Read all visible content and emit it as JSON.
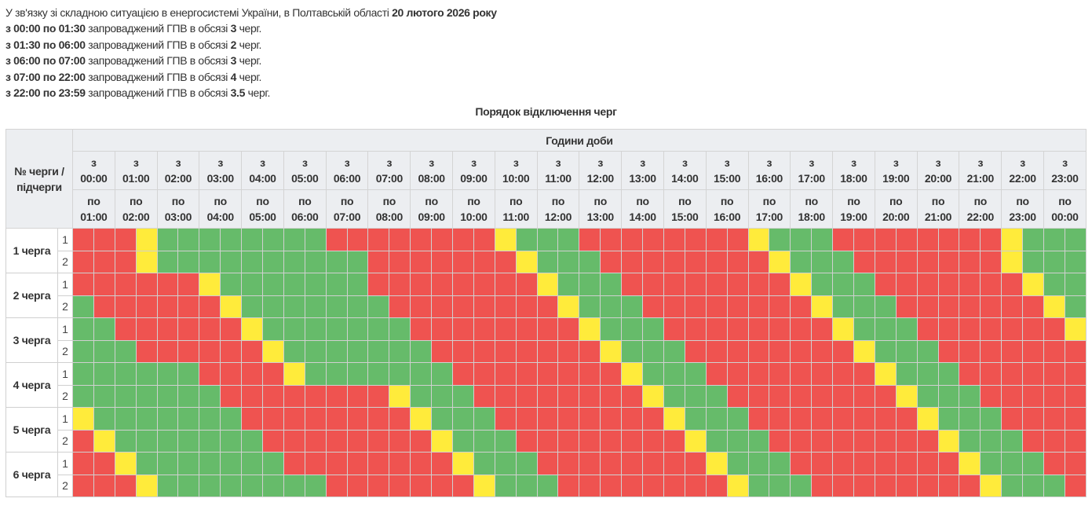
{
  "intro": {
    "text": "У зв'язку зі складною ситуацією в енергосистемі України, в Полтавській області",
    "date": "20 лютого 2026 року"
  },
  "periods": [
    {
      "range": "з 00:00 по 01:30",
      "text": "запроваджений ГПВ в обсязі",
      "amount": "3",
      "unit": "черг."
    },
    {
      "range": "з 01:30 по 06:00",
      "text": "запроваджений ГПВ в обсязі",
      "amount": "2",
      "unit": "черг."
    },
    {
      "range": "з 06:00 по 07:00",
      "text": "запроваджений ГПВ в обсязі",
      "amount": "3",
      "unit": "черг."
    },
    {
      "range": "з 07:00 по 22:00",
      "text": "запроваджений ГПВ в обсязі",
      "amount": "4",
      "unit": "черг."
    },
    {
      "range": "з 22:00 по 23:59",
      "text": "запроваджений ГПВ в обсязі",
      "amount": "3.5",
      "unit": "черг."
    }
  ],
  "table": {
    "title": "Порядок відключення черг",
    "corner_header": "№ черги / підчерги",
    "hours_header": "Години доби",
    "from_label": "з",
    "to_label": "по",
    "from_times": [
      "00:00",
      "01:00",
      "02:00",
      "03:00",
      "04:00",
      "05:00",
      "06:00",
      "07:00",
      "08:00",
      "09:00",
      "10:00",
      "11:00",
      "12:00",
      "13:00",
      "14:00",
      "15:00",
      "16:00",
      "17:00",
      "18:00",
      "19:00",
      "20:00",
      "21:00",
      "22:00",
      "23:00"
    ],
    "to_times": [
      "01:00",
      "02:00",
      "03:00",
      "04:00",
      "05:00",
      "06:00",
      "07:00",
      "08:00",
      "09:00",
      "10:00",
      "11:00",
      "12:00",
      "13:00",
      "14:00",
      "15:00",
      "16:00",
      "17:00",
      "18:00",
      "19:00",
      "20:00",
      "21:00",
      "22:00",
      "23:00",
      "00:00"
    ],
    "legend_colors": {
      "R": "#ef5350",
      "G": "#66bb6a",
      "Y": "#ffeb3b"
    },
    "queues": [
      {
        "label": "1 черга",
        "subs": [
          {
            "num": "1",
            "slots": "RRRYGGGGGGGGRRRRRRRRYGGGRRRRRRRRYGGGRRRRRRRRYGGG"
          },
          {
            "num": "2",
            "slots": "RRRYGGGGGGGGGGRRRRRRRYGGGRRRRRRRRYGGGRRRRRRRYGGG"
          }
        ]
      },
      {
        "label": "2 черга",
        "subs": [
          {
            "num": "1",
            "slots": "RRRRRRYGGGGGGGRRRRRRRRYGGGRRRRRRRRYGGGRRRRRRRYGG"
          },
          {
            "num": "2",
            "slots": "GRRRRRRYGGGGGGGRRRRRRRRYGGGRRRRRRRRYGGGRRRRRRRYG"
          }
        ]
      },
      {
        "label": "3 черга",
        "subs": [
          {
            "num": "1",
            "slots": "GGRRRRRRYGGGGGGGRRRRRRRRYGGGRRRRRRRRYGGGRRRRRRRY"
          },
          {
            "num": "2",
            "slots": "GGGRRRRRRYGGGGGGGRRRRRRRRYGGGRRRRRRRRYGGGRRRRRRR"
          }
        ]
      },
      {
        "label": "4 черга",
        "subs": [
          {
            "num": "1",
            "slots": "GGGGGGRRRRYGGGGGGGRRRRRRRRYGGGRRRRRRRRYGGGRRRRRR"
          },
          {
            "num": "2",
            "slots": "GGGGGGGRRRRRRRRYGGGRRRRRRRRYGGGRRRRRRRRYGGGRRRRR"
          }
        ]
      },
      {
        "label": "5 черга",
        "subs": [
          {
            "num": "1",
            "slots": "YGGGGGGGRRRRRRRRYGGGRRRRRRRRYGGGRRRRRRRRYGGGRRRR"
          },
          {
            "num": "2",
            "slots": "RYGGGGGGGRRRRRRRRYGGGRRRRRRRRYGGGRRRRRRRRYGGGRRR"
          }
        ]
      },
      {
        "label": "6 черга",
        "subs": [
          {
            "num": "1",
            "slots": "RRYGGGGGGGRRRRRRRRYGGGRRRRRRRRYGGGRRRRRRRRYGGGRR"
          },
          {
            "num": "2",
            "slots": "RRRYGGGGGGGGRRRRRRRYGGGRRRRRRRRYGGGRRRRRRRRYGGGR"
          }
        ]
      }
    ]
  }
}
